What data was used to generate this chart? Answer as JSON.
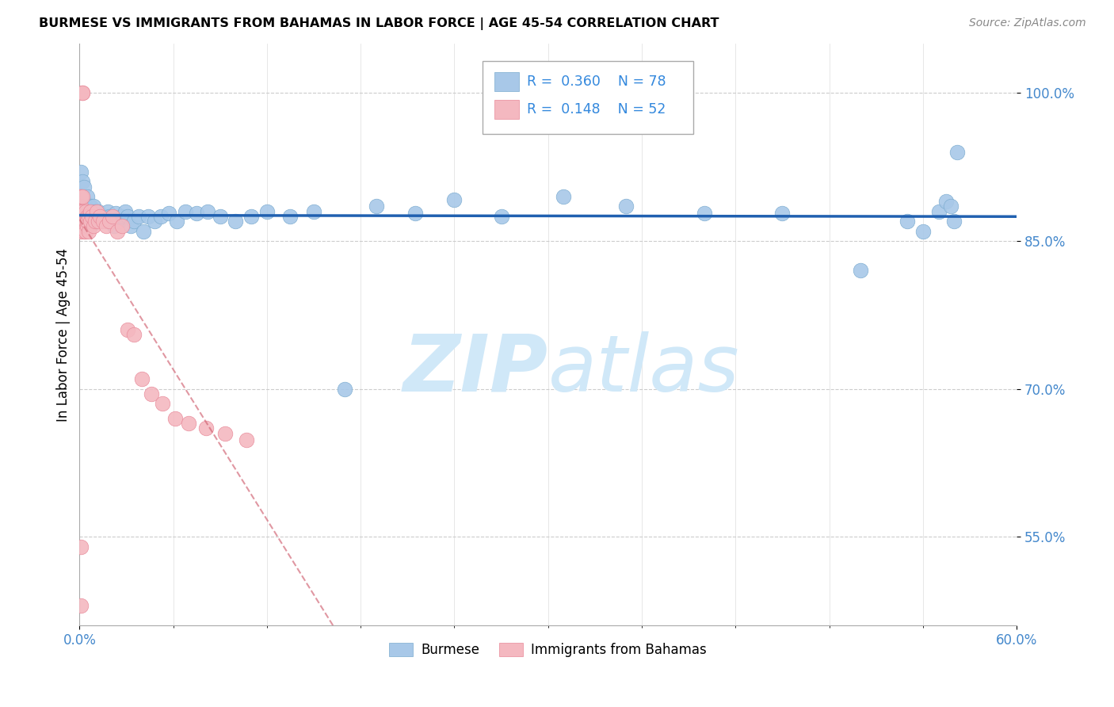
{
  "title": "BURMESE VS IMMIGRANTS FROM BAHAMAS IN LABOR FORCE | AGE 45-54 CORRELATION CHART",
  "source": "Source: ZipAtlas.com",
  "ylabel": "In Labor Force | Age 45-54",
  "xlim": [
    0.0,
    0.6
  ],
  "ylim": [
    0.46,
    1.05
  ],
  "ytick_vals": [
    0.55,
    0.7,
    0.85,
    1.0
  ],
  "ytick_labels": [
    "55.0%",
    "70.0%",
    "85.0%",
    "100.0%"
  ],
  "legend_r1": "0.360",
  "legend_n1": "78",
  "legend_r2": "0.148",
  "legend_n2": "52",
  "blue_color": "#a8c8e8",
  "blue_edge_color": "#7aabcf",
  "pink_color": "#f4b8c0",
  "pink_edge_color": "#e88898",
  "blue_line_color": "#2060b0",
  "pink_line_color": "#d06070",
  "watermark_color": "#d0e8f8",
  "blue_x": [
    0.001,
    0.001,
    0.002,
    0.002,
    0.002,
    0.003,
    0.003,
    0.003,
    0.003,
    0.004,
    0.004,
    0.005,
    0.005,
    0.005,
    0.006,
    0.006,
    0.007,
    0.007,
    0.007,
    0.008,
    0.008,
    0.009,
    0.009,
    0.01,
    0.01,
    0.011,
    0.012,
    0.013,
    0.014,
    0.015,
    0.016,
    0.017,
    0.018,
    0.019,
    0.02,
    0.021,
    0.022,
    0.023,
    0.024,
    0.025,
    0.027,
    0.029,
    0.031,
    0.033,
    0.035,
    0.038,
    0.041,
    0.044,
    0.048,
    0.052,
    0.057,
    0.062,
    0.068,
    0.075,
    0.082,
    0.09,
    0.1,
    0.11,
    0.12,
    0.135,
    0.15,
    0.17,
    0.19,
    0.215,
    0.24,
    0.27,
    0.31,
    0.35,
    0.4,
    0.45,
    0.5,
    0.53,
    0.54,
    0.55,
    0.555,
    0.558,
    0.56,
    0.562
  ],
  "blue_y": [
    0.89,
    0.92,
    0.87,
    0.895,
    0.91,
    0.875,
    0.89,
    0.905,
    0.87,
    0.885,
    0.875,
    0.88,
    0.865,
    0.895,
    0.87,
    0.885,
    0.875,
    0.865,
    0.885,
    0.87,
    0.88,
    0.875,
    0.885,
    0.88,
    0.87,
    0.875,
    0.88,
    0.875,
    0.87,
    0.875,
    0.875,
    0.87,
    0.88,
    0.875,
    0.87,
    0.875,
    0.865,
    0.878,
    0.872,
    0.87,
    0.875,
    0.88,
    0.875,
    0.865,
    0.87,
    0.875,
    0.86,
    0.875,
    0.87,
    0.875,
    0.878,
    0.87,
    0.88,
    0.878,
    0.88,
    0.875,
    0.87,
    0.875,
    0.88,
    0.875,
    0.88,
    0.7,
    0.885,
    0.878,
    0.892,
    0.875,
    0.895,
    0.885,
    0.878,
    0.878,
    0.82,
    0.87,
    0.86,
    0.88,
    0.89,
    0.885,
    0.87,
    0.94
  ],
  "pink_x": [
    0.001,
    0.001,
    0.001,
    0.001,
    0.001,
    0.001,
    0.001,
    0.002,
    0.002,
    0.002,
    0.002,
    0.002,
    0.003,
    0.003,
    0.003,
    0.003,
    0.004,
    0.004,
    0.004,
    0.005,
    0.005,
    0.005,
    0.006,
    0.006,
    0.007,
    0.007,
    0.008,
    0.009,
    0.01,
    0.011,
    0.012,
    0.013,
    0.015,
    0.017,
    0.019,
    0.021,
    0.024,
    0.027,
    0.031,
    0.035,
    0.04,
    0.046,
    0.053,
    0.061,
    0.07,
    0.081,
    0.093,
    0.107,
    0.002,
    0.002,
    0.001,
    0.001
  ],
  "pink_y": [
    0.87,
    0.885,
    0.895,
    0.87,
    0.88,
    0.895,
    0.86,
    0.87,
    0.88,
    0.865,
    0.895,
    0.87,
    0.865,
    0.875,
    0.86,
    0.875,
    0.87,
    0.86,
    0.88,
    0.865,
    0.875,
    0.87,
    0.875,
    0.86,
    0.87,
    0.88,
    0.875,
    0.865,
    0.87,
    0.88,
    0.87,
    0.875,
    0.87,
    0.865,
    0.87,
    0.875,
    0.86,
    0.865,
    0.76,
    0.755,
    0.71,
    0.695,
    0.685,
    0.67,
    0.665,
    0.66,
    0.655,
    0.648,
    1.0,
    1.0,
    0.54,
    0.48
  ]
}
